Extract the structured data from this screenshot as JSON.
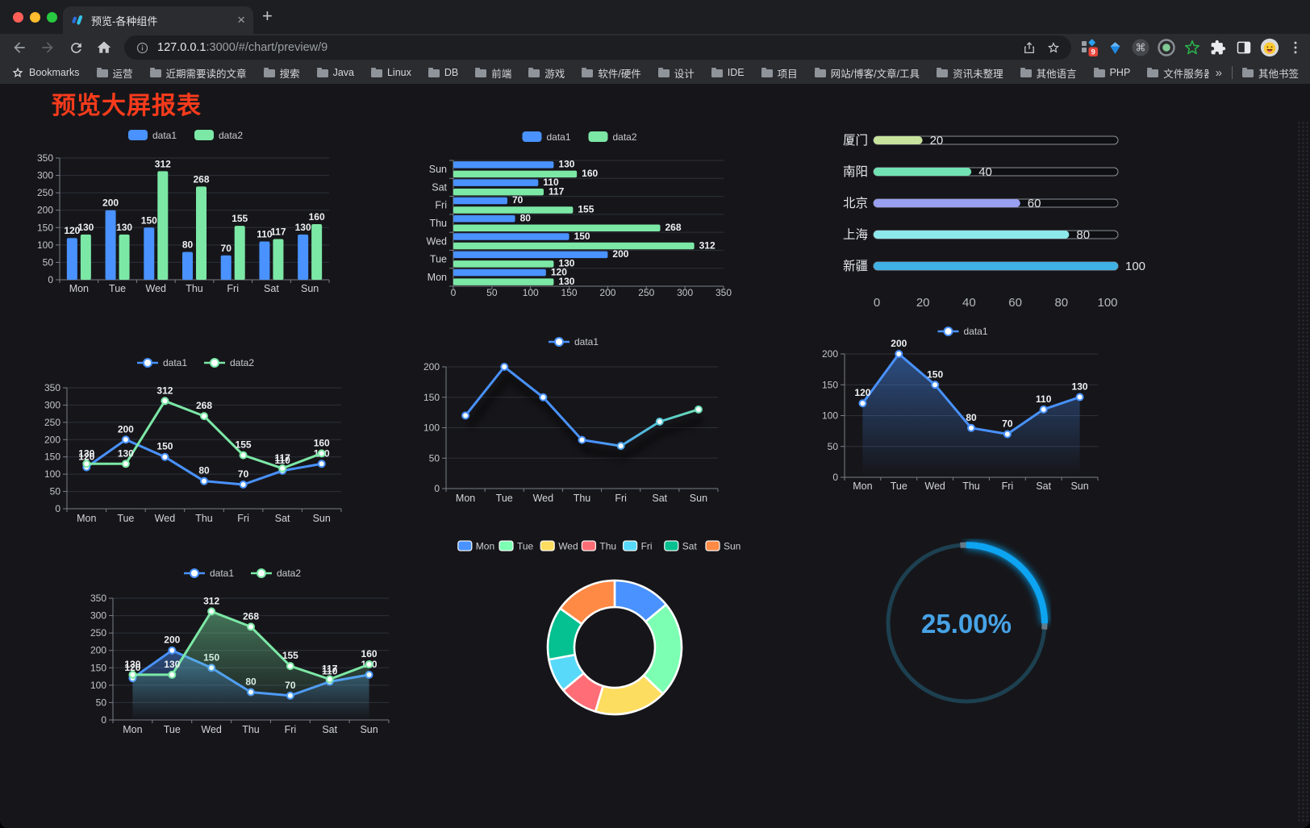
{
  "browser": {
    "tab_title": "预览-各种组件",
    "tab_close": "×",
    "new_tab": "+",
    "url": {
      "host": "127.0.0.1",
      "rest": ":3000/#/chart/preview/9"
    },
    "bookmarks_label": "Bookmarks",
    "bookmarks": [
      "运营",
      "近期需要读的文章",
      "搜索",
      "Java",
      "Linux",
      "DB",
      "前端",
      "游戏",
      "软件/硬件",
      "设计",
      "IDE",
      "项目",
      "网站/博客/文章/工具",
      "资讯未整理",
      "其他语言",
      "PHP",
      "文件服务器"
    ],
    "overflow_chevron": "»",
    "other_bookmarks": "其他书签",
    "extension_badge": "9",
    "icons": [
      "back-icon",
      "forward-icon",
      "reload-icon",
      "home-icon",
      "info-icon",
      "share-icon",
      "star-icon",
      "extensions-grid-icon",
      "gem-icon",
      "command-icon",
      "record-icon",
      "green-star-icon",
      "puzzle-icon",
      "split-view-icon",
      "avatar-emoji-icon",
      "menu-dots-icon"
    ]
  },
  "page": {
    "title": "预览大屏报表"
  },
  "palette": {
    "data1": "#4992ff",
    "data2": "#7ce8a6",
    "title_red": "#f83b1c"
  },
  "chart_data": [
    {
      "id": "c1",
      "type": "bar",
      "legend_position": "top",
      "value_labels": true,
      "categories": [
        "Mon",
        "Tue",
        "Wed",
        "Thu",
        "Fri",
        "Sat",
        "Sun"
      ],
      "series": [
        {
          "name": "data1",
          "color": "#4992ff",
          "values": [
            120,
            200,
            150,
            80,
            70,
            110,
            130
          ]
        },
        {
          "name": "data2",
          "color": "#7ce8a6",
          "values": [
            130,
            130,
            312,
            268,
            155,
            117,
            160
          ]
        }
      ],
      "ylim": [
        0,
        350
      ],
      "ystep": 50
    },
    {
      "id": "c2",
      "type": "bar",
      "orientation": "horizontal",
      "display_order": "Sun-at-top",
      "value_labels": true,
      "categories": [
        "Mon",
        "Tue",
        "Wed",
        "Thu",
        "Fri",
        "Sat",
        "Sun"
      ],
      "series": [
        {
          "name": "data1",
          "color": "#4992ff",
          "values": [
            120,
            200,
            150,
            80,
            70,
            110,
            130
          ]
        },
        {
          "name": "data2",
          "color": "#7ce8a6",
          "values": [
            130,
            130,
            312,
            268,
            155,
            117,
            160
          ]
        }
      ],
      "xlim": [
        0,
        350
      ],
      "xstep": 50
    },
    {
      "id": "c3",
      "type": "bar",
      "variant": "progress-list",
      "categories": [
        "厦门",
        "南阳",
        "北京",
        "上海",
        "新疆"
      ],
      "values": [
        20,
        40,
        60,
        80,
        100
      ],
      "colors": [
        "#c8e49c",
        "#71e2b3",
        "#9aa0f1",
        "#8ce8ea",
        "#3fb1e3"
      ],
      "xlim": [
        0,
        100
      ],
      "xstep": 20
    },
    {
      "id": "c4",
      "type": "line",
      "markers": true,
      "value_labels": true,
      "categories": [
        "Mon",
        "Tue",
        "Wed",
        "Thu",
        "Fri",
        "Sat",
        "Sun"
      ],
      "series": [
        {
          "name": "data1",
          "color": "#4992ff",
          "values": [
            120,
            200,
            150,
            80,
            70,
            110,
            130
          ]
        },
        {
          "name": "data2",
          "color": "#7ce8a6",
          "values": [
            130,
            130,
            312,
            268,
            155,
            117,
            160
          ]
        }
      ],
      "ylim": [
        0,
        350
      ],
      "ystep": 50
    },
    {
      "id": "c5",
      "type": "line",
      "markers": true,
      "value_labels": false,
      "categories": [
        "Mon",
        "Tue",
        "Wed",
        "Thu",
        "Fri",
        "Sat",
        "Sun"
      ],
      "series": [
        {
          "name": "data1",
          "gradient": [
            "#4992ff",
            "#7ce8a6"
          ],
          "values": [
            120,
            200,
            150,
            80,
            70,
            110,
            130
          ]
        }
      ],
      "ylim": [
        0,
        200
      ],
      "ystep": 50
    },
    {
      "id": "c6",
      "type": "area",
      "markers": true,
      "value_labels": true,
      "categories": [
        "Mon",
        "Tue",
        "Wed",
        "Thu",
        "Fri",
        "Sat",
        "Sun"
      ],
      "series": [
        {
          "name": "data1",
          "color": "#4992ff",
          "values": [
            120,
            200,
            150,
            80,
            70,
            110,
            130
          ]
        }
      ],
      "ylim": [
        0,
        200
      ],
      "ystep": 50
    },
    {
      "id": "c7",
      "type": "area",
      "markers": true,
      "value_labels": true,
      "categories": [
        "Mon",
        "Tue",
        "Wed",
        "Thu",
        "Fri",
        "Sat",
        "Sun"
      ],
      "series": [
        {
          "name": "data1",
          "color": "#4992ff",
          "values": [
            120,
            200,
            150,
            80,
            70,
            110,
            130
          ]
        },
        {
          "name": "data2",
          "color": "#7ce8a6",
          "values": [
            130,
            130,
            312,
            268,
            155,
            117,
            160
          ]
        }
      ],
      "ylim": [
        0,
        350
      ],
      "ystep": 50
    },
    {
      "id": "c8",
      "type": "pie",
      "variant": "donut",
      "categories": [
        "Mon",
        "Tue",
        "Wed",
        "Thu",
        "Fri",
        "Sat",
        "Sun"
      ],
      "values": [
        120,
        200,
        150,
        80,
        70,
        110,
        130
      ],
      "colors": [
        "#4992ff",
        "#7cffb2",
        "#fddd60",
        "#ff6e76",
        "#58d9f9",
        "#05c091",
        "#ff8a45"
      ]
    },
    {
      "id": "c9",
      "type": "gauge",
      "value": 25,
      "min": 0,
      "max": 100,
      "label": "25.00%",
      "color": "#0da4f2",
      "track_color": "#1d4050",
      "text_color": "#47a3e6"
    }
  ]
}
